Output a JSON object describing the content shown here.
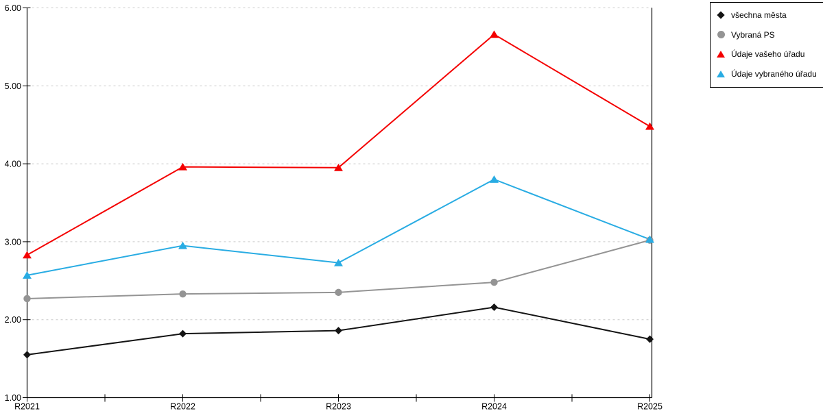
{
  "chart_data": {
    "type": "line",
    "title": "",
    "xlabel": "",
    "ylabel": "",
    "categories": [
      "R2021",
      "R2022",
      "R2023",
      "R2024",
      "R2025"
    ],
    "series": [
      {
        "name": "všechna města",
        "marker": "diamond",
        "color": "#141414",
        "values": [
          1.55,
          1.82,
          1.86,
          2.16,
          1.75
        ]
      },
      {
        "name": "Vybraná PS",
        "marker": "circle",
        "color": "#949494",
        "values": [
          2.27,
          2.33,
          2.35,
          2.48,
          3.02
        ]
      },
      {
        "name": "Údaje vašeho úřadu",
        "marker": "triangle",
        "color": "#f40000",
        "values": [
          2.83,
          3.96,
          3.95,
          5.66,
          4.48
        ]
      },
      {
        "name": "Údaje vybraného úřadu",
        "marker": "triangle",
        "color": "#29ace3",
        "values": [
          2.57,
          2.95,
          2.73,
          3.8,
          3.03
        ]
      }
    ],
    "ylim": [
      1,
      6
    ],
    "y_ticks": [
      "1.00",
      "2.00",
      "3.00",
      "4.00",
      "5.00",
      "6.00"
    ],
    "grid": "horizontal-dashed",
    "legend_position": "top-right"
  },
  "colors": {
    "background": "#ffffff",
    "axis": "#000000",
    "gridline": "#c9c9c9",
    "legend_border": "#000000"
  }
}
